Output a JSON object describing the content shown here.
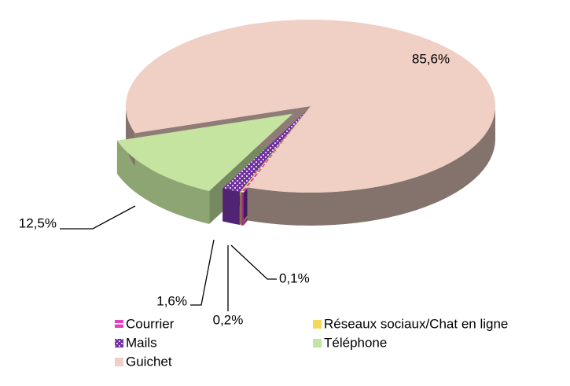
{
  "chart_data": {
    "type": "pie3d",
    "categories": [
      "Courrier",
      "Réseaux sociaux/Chat en ligne",
      "Mails",
      "Téléphone",
      "Guichet"
    ],
    "values": [
      0.2,
      0.1,
      1.6,
      12.5,
      85.6
    ],
    "value_labels": [
      "0,2%",
      "0,1%",
      "1,6%",
      "12,5%",
      "85,6%"
    ],
    "colors": [
      "#e23fc3",
      "#f5d858",
      "#7030a0",
      "#c4e4a0",
      "#f0cfc4"
    ],
    "patterns": [
      "stripes",
      null,
      "dots",
      null,
      null
    ],
    "legend": "bottom"
  }
}
